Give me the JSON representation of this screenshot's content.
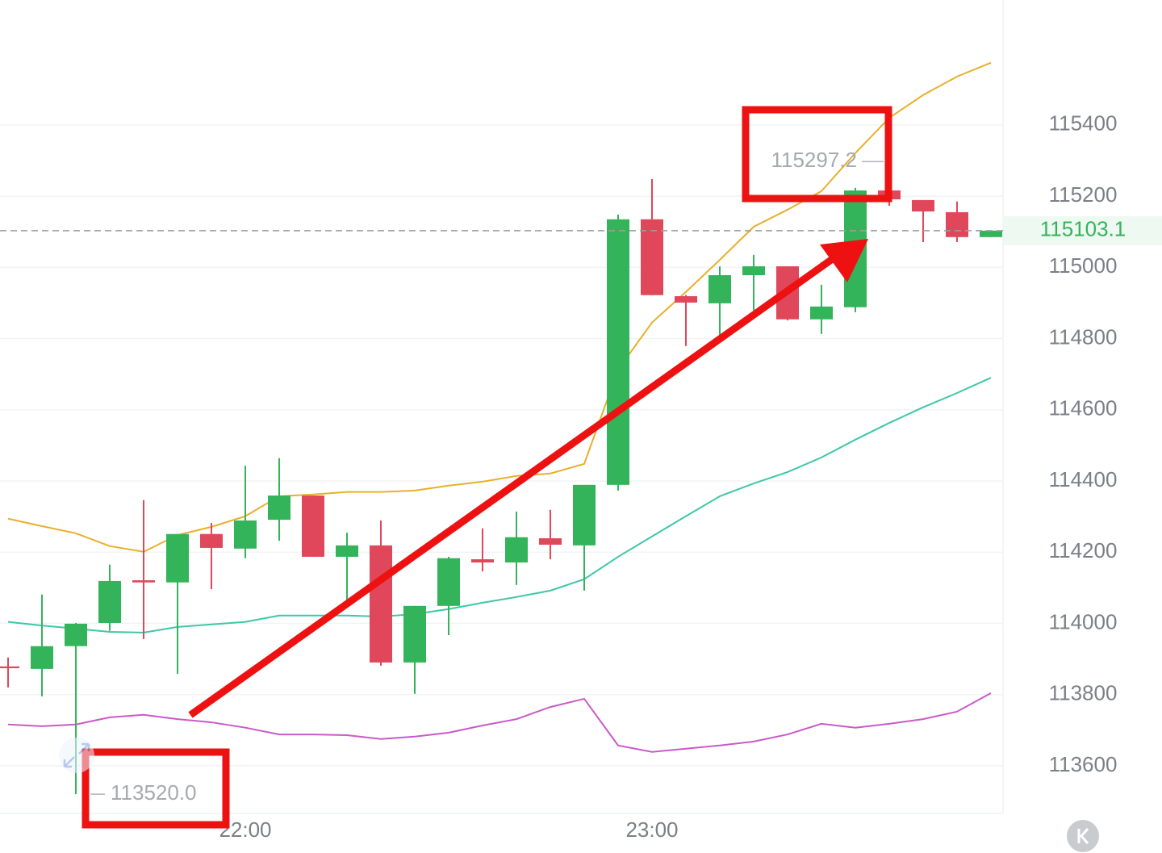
{
  "chart_data": {
    "type": "candlestick",
    "categories": [
      null,
      null,
      null,
      null,
      null,
      null,
      null,
      "22:00",
      null,
      null,
      null,
      null,
      null,
      null,
      null,
      null,
      null,
      null,
      null,
      "23:00",
      null,
      null,
      null,
      null,
      null,
      null,
      null,
      null,
      null,
      null
    ],
    "open": [
      113879,
      113872,
      113936,
      114001,
      114121,
      114115,
      114251,
      114210,
      114291,
      114359,
      114187,
      114219,
      113890,
      114049,
      114180,
      114171,
      114239,
      114219,
      114389,
      115135,
      114919,
      114899,
      114978,
      115003,
      114854,
      114888,
      115216,
      115189,
      115155,
      115085
    ],
    "high": [
      113904,
      114081,
      114001,
      114165,
      114346,
      114251,
      114282,
      114443,
      114464,
      114359,
      114255,
      114289,
      114049,
      114187,
      114267,
      114314,
      114319,
      114389,
      115148,
      115248,
      114922,
      115003,
      115035,
      115003,
      114951,
      115223,
      115216,
      115189,
      115185,
      115103.1
    ],
    "low": [
      113820,
      113795,
      113520,
      113979,
      113956,
      113858,
      114096,
      114183,
      114232,
      114187,
      114063,
      113881,
      113802,
      113967,
      114146,
      114108,
      114180,
      114092,
      114373,
      114922,
      114779,
      114799,
      114879,
      114851,
      114813,
      114874,
      115173,
      115071,
      115071,
      115085
    ],
    "close": [
      113874,
      113936,
      113999,
      114119,
      114115,
      114251,
      114212,
      114289,
      114359,
      114187,
      114219,
      113890,
      114049,
      114183,
      114171,
      114242,
      114221,
      114389,
      115135,
      114922,
      114901,
      114978,
      115003,
      114854,
      114890,
      115216,
      115191,
      115157,
      115085,
      115103.1
    ],
    "up_color": "#34b45a",
    "down_color": "#e0475a",
    "lines": [
      {
        "color": "#e8b02a",
        "values": [
          114294,
          114273,
          114253,
          114217,
          114201,
          114248,
          114271,
          114301,
          114357,
          114362,
          114369,
          114369,
          114373,
          114387,
          114398,
          114414,
          114421,
          114448,
          114713,
          114845,
          114931,
          115021,
          115114,
          115162,
          115214,
          115321,
          115420,
          115484,
          115536,
          115575
        ]
      },
      {
        "color": "#3cc8a8",
        "values": [
          114004,
          113994,
          113985,
          113976,
          113974,
          113990,
          113997,
          114004,
          114022,
          114022,
          114022,
          114019,
          114026,
          114040,
          114058,
          114074,
          114092,
          114124,
          114187,
          114244,
          114301,
          114357,
          114393,
          114425,
          114466,
          114516,
          114563,
          114607,
          114647,
          114690
        ]
      },
      {
        "color": "#c95ac8",
        "values": [
          113716,
          113711,
          113716,
          113736,
          113743,
          113731,
          113722,
          113707,
          113688,
          113688,
          113686,
          113675,
          113682,
          113693,
          113713,
          113731,
          113765,
          113788,
          113657,
          113639,
          113648,
          113657,
          113668,
          113688,
          113718,
          113707,
          113718,
          113731,
          113752,
          113804
        ]
      }
    ],
    "ylim": [
      113466,
      115751
    ],
    "yticks": [
      113600,
      113800,
      114000,
      114200,
      114400,
      114600,
      114800,
      115000,
      115200,
      115400
    ],
    "grid": true,
    "last_price": 115103.1,
    "high_marker": 115297.2,
    "low_marker": {
      "value": 113520,
      "label": "113520.0"
    }
  }
}
